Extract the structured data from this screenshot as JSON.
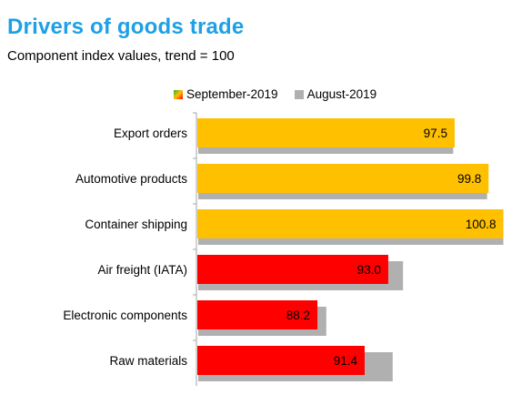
{
  "title": "Drivers of goods trade",
  "subtitle": "Component index values, trend = 100",
  "legend": {
    "current_label": "September-2019",
    "prior_label": "August-2019"
  },
  "colors": {
    "above_trend": "#ffc000",
    "below_trend": "#ff0000",
    "prior": "#b0b0b0",
    "title": "#1ea0e6"
  },
  "chart_data": {
    "type": "bar",
    "orientation": "horizontal",
    "title": "Drivers of goods trade",
    "subtitle": "Component index values, trend = 100",
    "xlabel": "",
    "ylabel": "",
    "xlim": [
      80,
      101.2
    ],
    "categories": [
      "Export orders",
      "Automotive products",
      "Container shipping",
      "Air freight (IATA)",
      "Electronic components",
      "Raw materials"
    ],
    "series": [
      {
        "name": "September-2019",
        "values": [
          97.5,
          99.8,
          100.8,
          93.0,
          88.2,
          91.4
        ]
      },
      {
        "name": "August-2019",
        "values": [
          97.4,
          99.7,
          100.8,
          94.0,
          88.8,
          93.3
        ]
      }
    ],
    "data_labels": [
      "97.5",
      "99.8",
      "100.8",
      "93.0",
      "88.2",
      "91.4"
    ],
    "grid": false,
    "legend_position": "top"
  }
}
